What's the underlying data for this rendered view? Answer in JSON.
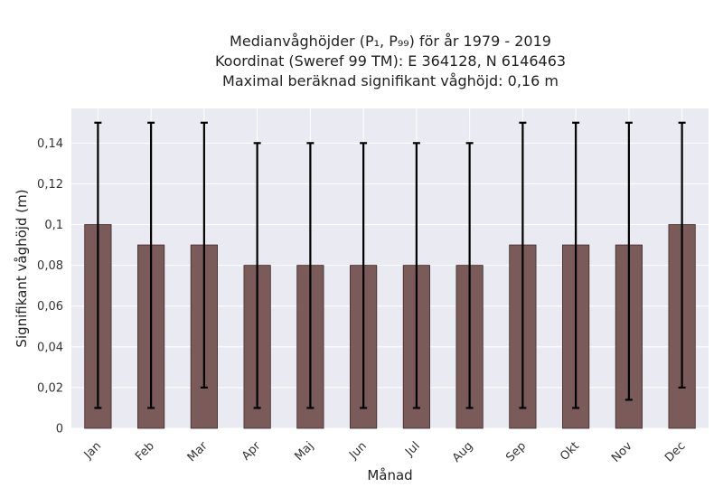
{
  "chart_data": {
    "type": "bar",
    "title_lines": [
      "Medianvåghöjder (P₁, P₉₉) för år 1979 - 2019",
      "Koordinat (Sweref 99 TM): E 364128, N 6146463",
      "Maximal beräknad signifikant våghöjd: 0,16 m"
    ],
    "xlabel": "Månad",
    "ylabel": "Signifikant våghöjd (m)",
    "categories": [
      "Jan",
      "Feb",
      "Mar",
      "Apr",
      "Maj",
      "Jun",
      "Jul",
      "Aug",
      "Sep",
      "Okt",
      "Nov",
      "Dec"
    ],
    "values": [
      0.1,
      0.09,
      0.09,
      0.08,
      0.08,
      0.08,
      0.08,
      0.08,
      0.09,
      0.09,
      0.09,
      0.1
    ],
    "error_low": [
      0.01,
      0.01,
      0.02,
      0.01,
      0.01,
      0.01,
      0.01,
      0.01,
      0.01,
      0.01,
      0.014,
      0.02
    ],
    "error_high": [
      0.15,
      0.15,
      0.15,
      0.14,
      0.14,
      0.14,
      0.14,
      0.14,
      0.15,
      0.15,
      0.15,
      0.15
    ],
    "ylim": [
      0,
      0.157
    ],
    "yticks": [
      0,
      0.02,
      0.04,
      0.06,
      0.08,
      0.1,
      0.12,
      0.14
    ],
    "ytick_labels": [
      "0",
      "0,02",
      "0,04",
      "0,06",
      "0,08",
      "0,1",
      "0,12",
      "0,14"
    ],
    "grid": true,
    "colors": {
      "bar": "#7b5a5a",
      "bar_edge": "#3a2a2a",
      "background": "#eaeaf2",
      "grid": "#ffffff",
      "error_bar": "#000000"
    }
  }
}
